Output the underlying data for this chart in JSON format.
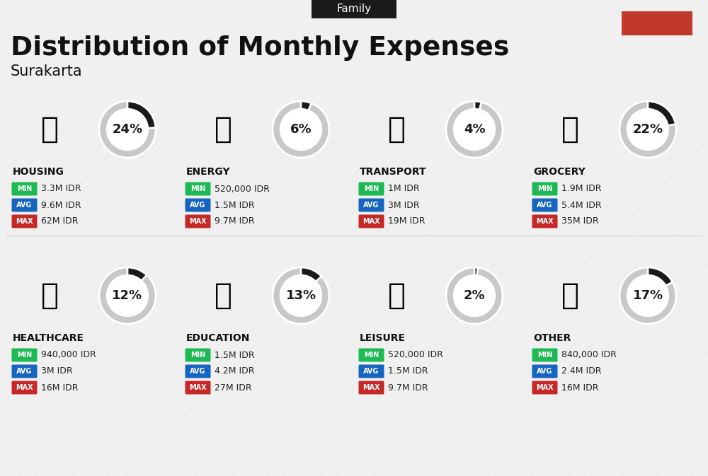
{
  "title": "Distribution of Monthly Expenses",
  "subtitle": "Surakarta",
  "tag": "Family",
  "bg_color": "#f0f0f0",
  "title_color": "#111111",
  "tag_bg": "#1a1a1a",
  "tag_text": "#ffffff",
  "red_rect_color": "#c0392b",
  "categories": [
    {
      "name": "HOUSING",
      "pct": 24,
      "col": 0,
      "row": 0,
      "min": "3.3M IDR",
      "avg": "9.6M IDR",
      "max": "62M IDR"
    },
    {
      "name": "ENERGY",
      "pct": 6,
      "col": 1,
      "row": 0,
      "min": "520,000 IDR",
      "avg": "1.5M IDR",
      "max": "9.7M IDR"
    },
    {
      "name": "TRANSPORT",
      "pct": 4,
      "col": 2,
      "row": 0,
      "min": "1M IDR",
      "avg": "3M IDR",
      "max": "19M IDR"
    },
    {
      "name": "GROCERY",
      "pct": 22,
      "col": 3,
      "row": 0,
      "min": "1.9M IDR",
      "avg": "5.4M IDR",
      "max": "35M IDR"
    },
    {
      "name": "HEALTHCARE",
      "pct": 12,
      "col": 0,
      "row": 1,
      "min": "940,000 IDR",
      "avg": "3M IDR",
      "max": "16M IDR"
    },
    {
      "name": "EDUCATION",
      "pct": 13,
      "col": 1,
      "row": 1,
      "min": "1.5M IDR",
      "avg": "4.2M IDR",
      "max": "27M IDR"
    },
    {
      "name": "LEISURE",
      "pct": 2,
      "col": 2,
      "row": 1,
      "min": "520,000 IDR",
      "avg": "1.5M IDR",
      "max": "9.7M IDR"
    },
    {
      "name": "OTHER",
      "pct": 17,
      "col": 3,
      "row": 1,
      "min": "840,000 IDR",
      "avg": "2.4M IDR",
      "max": "16M IDR"
    }
  ],
  "min_color": "#1db954",
  "avg_color": "#1565c0",
  "max_color": "#c62828",
  "donut_filled": "#1a1a1a",
  "donut_empty": "#c8c8c8",
  "stripe_color": "#d8d8d8"
}
